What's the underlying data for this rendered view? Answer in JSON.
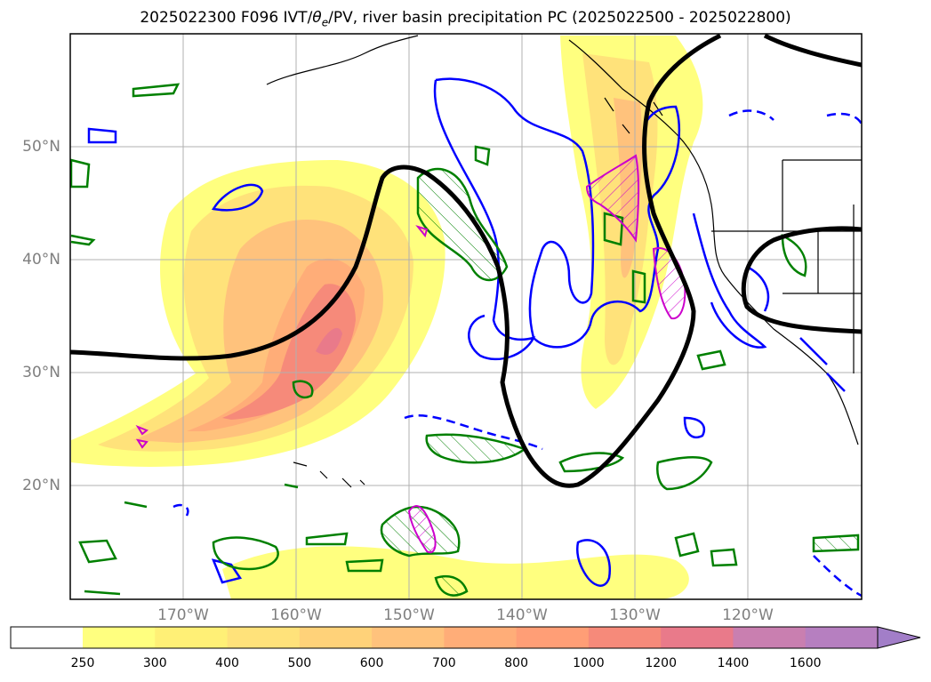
{
  "title": "2025022300 F096 IVT/θe/PV, river basin precipitation PC (2025022500 - 2025022800)",
  "title_parts": {
    "prefix": "2025022300 F096 IVT/",
    "theta": "θ",
    "sub": "e",
    "suffix": "/PV, river basin precipitation PC (2025022500 - 2025022800)"
  },
  "map": {
    "lat_labels": [
      "50°N",
      "40°N",
      "30°N",
      "20°N"
    ],
    "lon_labels": [
      "170°W",
      "160°W",
      "150°W",
      "140°W",
      "130°W",
      "120°W"
    ],
    "lat_values": [
      50,
      40,
      30,
      20
    ],
    "lon_values": [
      -170,
      -160,
      -150,
      -140,
      -130,
      -120
    ],
    "lon_range": [
      -180,
      -110
    ],
    "lat_range": [
      10,
      60
    ],
    "grid": true
  },
  "colorbar": {
    "levels": [
      "250",
      "300",
      "400",
      "500",
      "600",
      "700",
      "800",
      "1000",
      "1200",
      "1400",
      "1600"
    ],
    "colors": [
      "#ffff7f",
      "#fff076",
      "#ffe27a",
      "#ffd279",
      "#ffc27c",
      "#ffad78",
      "#ff9e76",
      "#f68a7a",
      "#e97a8a",
      "#c97fb0",
      "#b67fc0",
      "#a27ec8"
    ],
    "extend": "max"
  },
  "colors": {
    "ivt_line": "#000000",
    "theta_e": "#0000ff",
    "pv": "#008000",
    "precip_pc": "#cc00cc",
    "grid": "#b0b0b0",
    "label": "#7f7f7f"
  }
}
